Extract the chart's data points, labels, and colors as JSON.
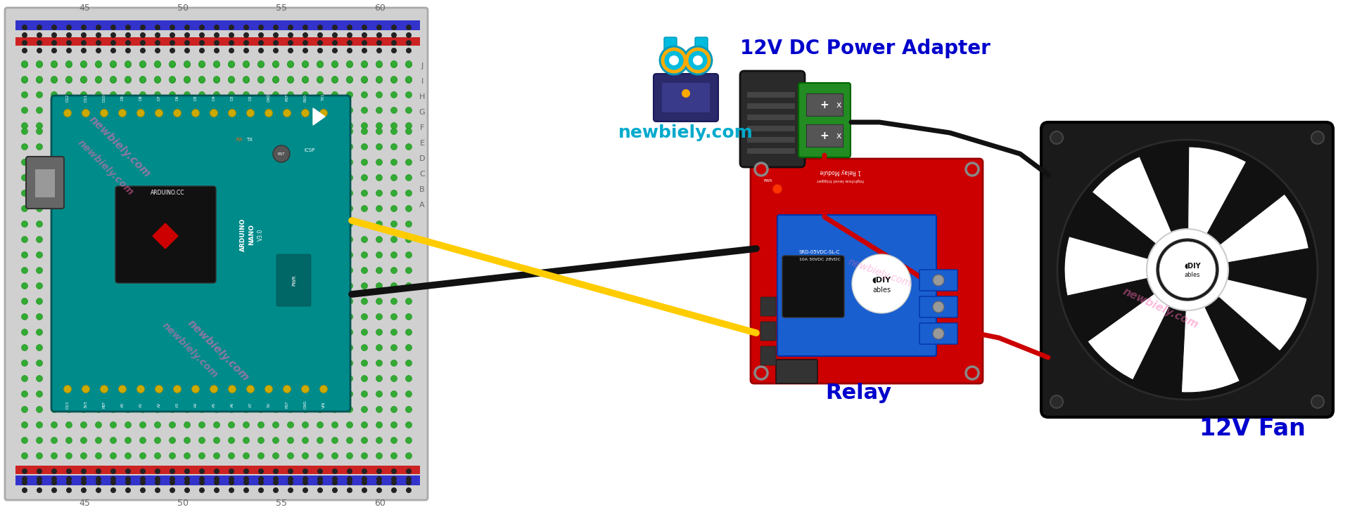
{
  "bg_color": "#ffffff",
  "label_relay": "Relay",
  "label_fan": "12V Fan",
  "label_adapter": "12V DC Power Adapter",
  "label_color_blue": "#0000cc",
  "logo_text": "newbiely.com",
  "logo_color": "#00aacc",
  "watermark_color": "#ff69b4",
  "watermark_text": "newbiely.com",
  "breadboard_color": "#cccccc",
  "arduino_color": "#008B8B",
  "relay_red": "#cc0000",
  "relay_blue": "#1a5fcf",
  "fan_dark": "#1a1a1a",
  "wire_yellow": "#ffcc00",
  "wire_black": "#111111",
  "wire_red": "#cc0000"
}
